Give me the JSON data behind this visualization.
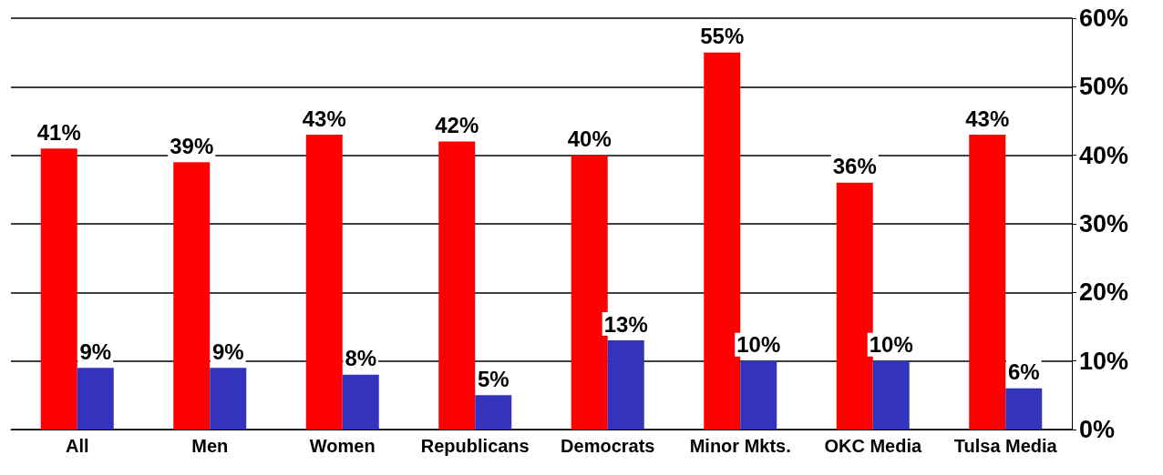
{
  "chart_data": {
    "type": "bar",
    "categories": [
      "All",
      "Men",
      "Women",
      "Republicans",
      "Democrats",
      "Minor Mkts.",
      "OKC Media",
      "Tulsa Media"
    ],
    "series": [
      {
        "color": "#ff0000",
        "values": [
          41,
          39,
          43,
          42,
          40,
          55,
          36,
          43
        ],
        "value_labels": [
          "41%",
          "39%",
          "43%",
          "42%",
          "40%",
          "55%",
          "36%",
          "43%"
        ]
      },
      {
        "color": "#3333bb",
        "values": [
          9,
          9,
          8,
          5,
          13,
          10,
          10,
          6
        ],
        "value_labels": [
          "9%",
          "9%",
          "8%",
          "5%",
          "13%",
          "10%",
          "10%",
          "6%"
        ]
      }
    ],
    "ylim": [
      0,
      60
    ],
    "yticks": [
      {
        "value": 0,
        "label": "0%"
      },
      {
        "value": 10,
        "label": "10%"
      },
      {
        "value": 20,
        "label": "20%"
      },
      {
        "value": 30,
        "label": "30%"
      },
      {
        "value": 40,
        "label": "40%"
      },
      {
        "value": 50,
        "label": "50%"
      },
      {
        "value": 60,
        "label": "60%"
      }
    ],
    "grid": "y"
  }
}
